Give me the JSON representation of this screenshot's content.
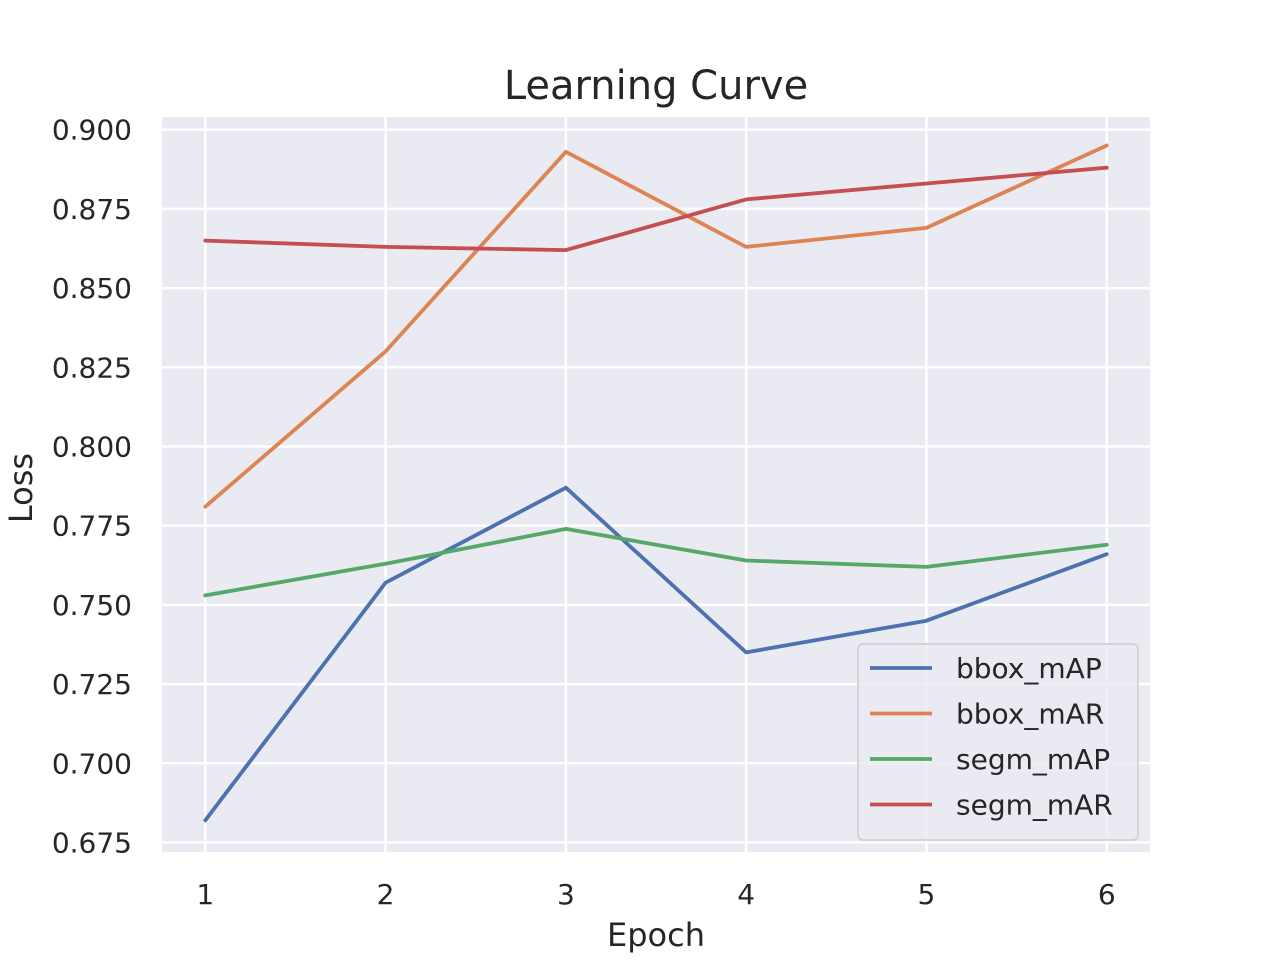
{
  "chart_data": {
    "type": "line",
    "title": "Learning Curve",
    "xlabel": "Epoch",
    "ylabel": "Loss",
    "x": [
      1,
      2,
      3,
      4,
      5,
      6
    ],
    "xlim": [
      0.76,
      6.24
    ],
    "ylim": [
      0.672,
      0.904
    ],
    "xticks": [
      1,
      2,
      3,
      4,
      5,
      6
    ],
    "yticks": [
      0.675,
      0.7,
      0.725,
      0.75,
      0.775,
      0.8,
      0.825,
      0.85,
      0.875,
      0.9
    ],
    "ytick_labels": [
      "0.675",
      "0.700",
      "0.725",
      "0.750",
      "0.775",
      "0.800",
      "0.825",
      "0.850",
      "0.875",
      "0.900"
    ],
    "grid": true,
    "legend_position": "lower-right",
    "background": "#eaeaf2",
    "series": [
      {
        "name": "bbox_mAP",
        "color": "#4c72b0",
        "values": [
          0.682,
          0.757,
          0.787,
          0.735,
          0.745,
          0.766
        ]
      },
      {
        "name": "bbox_mAR",
        "color": "#dd8452",
        "values": [
          0.781,
          0.83,
          0.893,
          0.863,
          0.869,
          0.895
        ]
      },
      {
        "name": "segm_mAP",
        "color": "#55a868",
        "values": [
          0.753,
          0.763,
          0.774,
          0.764,
          0.762,
          0.769
        ]
      },
      {
        "name": "segm_mAR",
        "color": "#c44e52",
        "values": [
          0.865,
          0.863,
          0.862,
          0.878,
          0.883,
          0.888
        ]
      }
    ]
  }
}
